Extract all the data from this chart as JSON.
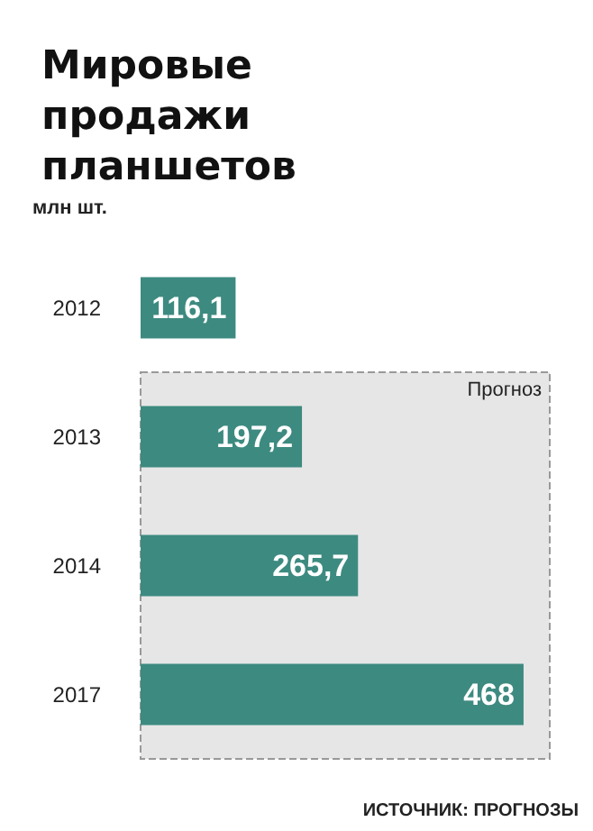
{
  "chart_data": {
    "type": "bar",
    "orientation": "horizontal",
    "title": "Мировые продажи планшетов",
    "xlabel": "млн шт.",
    "categories": [
      "2012",
      "2013",
      "2014",
      "2017"
    ],
    "values": [
      116.1,
      197.2,
      265.7,
      468
    ],
    "value_labels": [
      "116,1",
      "197,2",
      "265,7",
      "468"
    ],
    "color": "#3d8a80",
    "tick_labels": "y",
    "bands": [
      {
        "axis": "y",
        "from": "2013",
        "to": "2017",
        "label": "Прогноз",
        "color": "#e6e6e6"
      }
    ],
    "annotations": [
      "ИСТОЧНИК: ПРОГНОЗЫ"
    ]
  }
}
